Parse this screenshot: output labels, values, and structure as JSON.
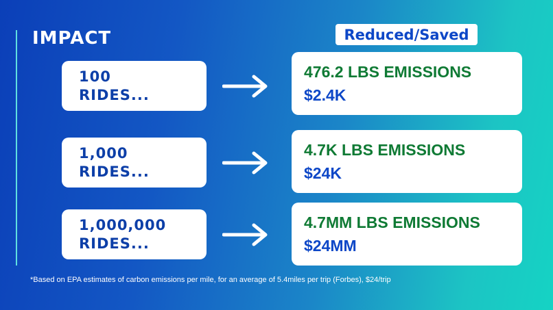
{
  "title": "IMPACT",
  "header_tag": "Reduced/Saved",
  "rows": [
    {
      "left_line1": "100",
      "left_line2": "RIDES...",
      "emissions": "476.2 LBS EMISSIONS",
      "savings": "$2.4K"
    },
    {
      "left_line1": "1,000",
      "left_line2": "RIDES...",
      "emissions": "4.7K LBS EMISSIONS",
      "savings": "$24K"
    },
    {
      "left_line1": "1,000,000",
      "left_line2": "RIDES...",
      "emissions": "4.7MM LBS EMISSIONS",
      "savings": "$24MM"
    }
  ],
  "footnote": "*Based on EPA estimates of carbon emissions per mile, for an average of 5.4miles per trip (Forbes), $24/trip",
  "colors": {
    "accent_green": "#0f7a34",
    "accent_blue": "#0d47c7",
    "card_bg": "#ffffff"
  },
  "icons": {
    "arrow": "arrow-right-icon"
  }
}
